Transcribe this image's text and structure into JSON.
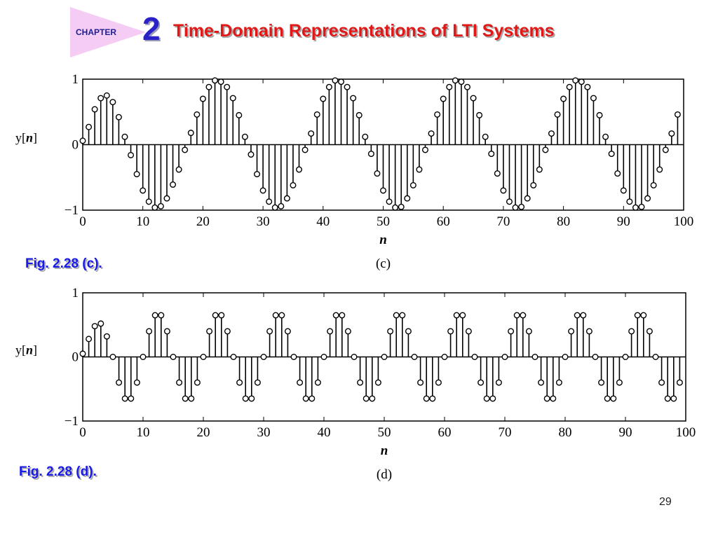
{
  "header": {
    "chapter_label": "CHAPTER",
    "chapter_number": "2",
    "title": "Time-Domain Representations of LTI Systems"
  },
  "colors": {
    "title": "#e01818",
    "chapter_number": "#2a22c8",
    "chapter_tab": "#f4ccf4",
    "caption": "#1a1ae6"
  },
  "captions": {
    "c": "Fig. 2.28 (c).",
    "d": "Fig. 2.28 (d)."
  },
  "page_number": "29",
  "chart_data": [
    {
      "type": "stem",
      "sublabel": "(c)",
      "xlabel": "n",
      "ylabel": "y[n]",
      "xlim": [
        0,
        100
      ],
      "ylim": [
        -1,
        1
      ],
      "xticks": [
        0,
        10,
        20,
        30,
        40,
        50,
        60,
        70,
        80,
        90,
        100
      ],
      "yticks": [
        -1,
        0,
        1
      ],
      "grid": false,
      "x": [
        0,
        1,
        2,
        3,
        4,
        5,
        6,
        7,
        8,
        9,
        10,
        11,
        12,
        13,
        14,
        15,
        16,
        17,
        18,
        19,
        20,
        21,
        22,
        23,
        24,
        25,
        26,
        27,
        28,
        29,
        30,
        31,
        32,
        33,
        34,
        35,
        36,
        37,
        38,
        39,
        40,
        41,
        42,
        43,
        44,
        45,
        46,
        47,
        48,
        49,
        50,
        51,
        52,
        53,
        54,
        55,
        56,
        57,
        58,
        59,
        60,
        61,
        62,
        63,
        64,
        65,
        66,
        67,
        68,
        69,
        70,
        71,
        72,
        73,
        74,
        75,
        76,
        77,
        78,
        79,
        80,
        81,
        82,
        83,
        84,
        85,
        86,
        87,
        88,
        89,
        90,
        91,
        92,
        93,
        94,
        95,
        96,
        97,
        98,
        99
      ],
      "values": [
        0.06,
        0.27,
        0.54,
        0.71,
        0.75,
        0.65,
        0.42,
        0.12,
        -0.16,
        -0.45,
        -0.7,
        -0.87,
        -0.96,
        -0.94,
        -0.82,
        -0.61,
        -0.38,
        -0.08,
        0.18,
        0.46,
        0.7,
        0.88,
        0.98,
        0.96,
        0.88,
        0.71,
        0.45,
        0.12,
        -0.15,
        -0.45,
        -0.7,
        -0.87,
        -0.96,
        -0.94,
        -0.82,
        -0.62,
        -0.38,
        -0.08,
        0.17,
        0.46,
        0.7,
        0.88,
        0.98,
        0.96,
        0.88,
        0.71,
        0.45,
        0.12,
        -0.14,
        -0.44,
        -0.7,
        -0.87,
        -0.96,
        -0.95,
        -0.82,
        -0.62,
        -0.38,
        -0.08,
        0.17,
        0.46,
        0.7,
        0.88,
        0.98,
        0.96,
        0.88,
        0.71,
        0.45,
        0.12,
        -0.14,
        -0.44,
        -0.7,
        -0.87,
        -0.96,
        -0.95,
        -0.82,
        -0.62,
        -0.38,
        -0.08,
        0.17,
        0.46,
        0.7,
        0.88,
        0.98,
        0.96,
        0.88,
        0.71,
        0.45,
        0.12,
        -0.14,
        -0.44,
        -0.7,
        -0.87,
        -0.96,
        -0.95,
        -0.82,
        -0.62,
        -0.38,
        -0.08,
        0.17,
        0.46
      ]
    },
    {
      "type": "stem",
      "sublabel": "(d)",
      "xlabel": "n",
      "ylabel": "y[n]",
      "xlim": [
        0,
        100
      ],
      "ylim": [
        -1,
        1
      ],
      "xticks": [
        0,
        10,
        20,
        30,
        40,
        50,
        60,
        70,
        80,
        90,
        100
      ],
      "yticks": [
        -1,
        0,
        1
      ],
      "grid": false,
      "x": [
        0,
        1,
        2,
        3,
        4,
        5,
        6,
        7,
        8,
        9,
        10,
        11,
        12,
        13,
        14,
        15,
        16,
        17,
        18,
        19,
        20,
        21,
        22,
        23,
        24,
        25,
        26,
        27,
        28,
        29,
        30,
        31,
        32,
        33,
        34,
        35,
        36,
        37,
        38,
        39,
        40,
        41,
        42,
        43,
        44,
        45,
        46,
        47,
        48,
        49,
        50,
        51,
        52,
        53,
        54,
        55,
        56,
        57,
        58,
        59,
        60,
        61,
        62,
        63,
        64,
        65,
        66,
        67,
        68,
        69,
        70,
        71,
        72,
        73,
        74,
        75,
        76,
        77,
        78,
        79,
        80,
        81,
        82,
        83,
        84,
        85,
        86,
        87,
        88,
        89,
        90,
        91,
        92,
        93,
        94,
        95,
        96,
        97,
        98,
        99
      ],
      "values": [
        0.05,
        0.28,
        0.48,
        0.52,
        0.32,
        0.0,
        -0.4,
        -0.65,
        -0.65,
        -0.4,
        0.0,
        0.4,
        0.65,
        0.65,
        0.4,
        0.0,
        -0.4,
        -0.65,
        -0.65,
        -0.4,
        0.0,
        0.4,
        0.65,
        0.65,
        0.4,
        0.0,
        -0.4,
        -0.65,
        -0.65,
        -0.4,
        0.0,
        0.4,
        0.65,
        0.65,
        0.4,
        0.0,
        -0.4,
        -0.65,
        -0.65,
        -0.4,
        0.0,
        0.4,
        0.65,
        0.65,
        0.4,
        0.0,
        -0.4,
        -0.65,
        -0.65,
        -0.4,
        0.0,
        0.4,
        0.65,
        0.65,
        0.4,
        0.0,
        -0.4,
        -0.65,
        -0.65,
        -0.4,
        0.0,
        0.4,
        0.65,
        0.65,
        0.4,
        0.0,
        -0.4,
        -0.65,
        -0.65,
        -0.4,
        0.0,
        0.4,
        0.65,
        0.65,
        0.4,
        0.0,
        -0.4,
        -0.65,
        -0.65,
        -0.4,
        0.0,
        0.4,
        0.65,
        0.65,
        0.4,
        0.0,
        -0.4,
        -0.65,
        -0.65,
        -0.4,
        0.0,
        0.4,
        0.65,
        0.65,
        0.4,
        0.0,
        -0.4,
        -0.65,
        -0.65,
        -0.4
      ]
    }
  ]
}
